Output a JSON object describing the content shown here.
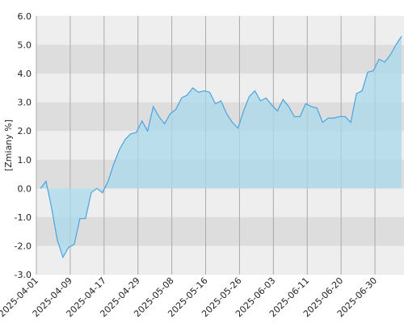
{
  "chart_data": {
    "type": "area",
    "y_label": "[Zmiany %]",
    "categories": [
      "2025-04-01",
      null,
      null,
      null,
      null,
      null,
      "2025-04-09",
      null,
      null,
      null,
      null,
      null,
      "2025-04-17",
      null,
      null,
      null,
      null,
      null,
      "2025-04-29",
      null,
      null,
      null,
      null,
      null,
      "2025-05-08",
      null,
      null,
      null,
      null,
      null,
      "2025-05-16",
      null,
      null,
      null,
      null,
      null,
      "2025-05-26",
      null,
      null,
      null,
      null,
      null,
      "2025-06-03",
      null,
      null,
      null,
      null,
      null,
      "2025-06-11",
      null,
      null,
      null,
      null,
      null,
      "2025-06-20",
      null,
      null,
      null,
      null,
      null,
      "2025-06-30",
      null,
      null,
      null,
      null
    ],
    "values": [
      0,
      0.25,
      -0.7,
      -1.8,
      -2.4,
      -2.05,
      -1.95,
      -1.05,
      -1.05,
      -0.15,
      0,
      -0.15,
      0.25,
      0.85,
      1.35,
      1.7,
      1.9,
      1.95,
      2.35,
      2.0,
      2.85,
      2.5,
      2.25,
      2.6,
      2.75,
      3.15,
      3.25,
      3.5,
      3.35,
      3.4,
      3.35,
      2.95,
      3.05,
      2.6,
      2.3,
      2.1,
      2.7,
      3.2,
      3.4,
      3.05,
      3.15,
      2.9,
      2.7,
      3.1,
      2.85,
      2.5,
      2.5,
      2.95,
      2.85,
      2.8,
      2.3,
      2.45,
      2.45,
      2.5,
      2.5,
      2.3,
      3.3,
      3.4,
      4.05,
      4.1,
      4.5,
      4.4,
      4.65,
      5.0,
      5.3
    ],
    "color": "#4aa3e0",
    "fill_color": "#a8d8ea",
    "ylim": [
      -3,
      6
    ],
    "yticks": [
      {
        "value": -3,
        "label": "-3.0"
      },
      {
        "value": -2,
        "label": "-2.0"
      },
      {
        "value": -1,
        "label": "-1.0"
      },
      {
        "value": 0,
        "label": "0.0"
      },
      {
        "value": 1,
        "label": "1.0"
      },
      {
        "value": 2,
        "label": "2.0"
      },
      {
        "value": 3,
        "label": "3.0"
      },
      {
        "value": 4,
        "label": "4.0"
      },
      {
        "value": 5,
        "label": "5.0"
      },
      {
        "value": 6,
        "label": "6.0"
      }
    ],
    "grid": true
  }
}
